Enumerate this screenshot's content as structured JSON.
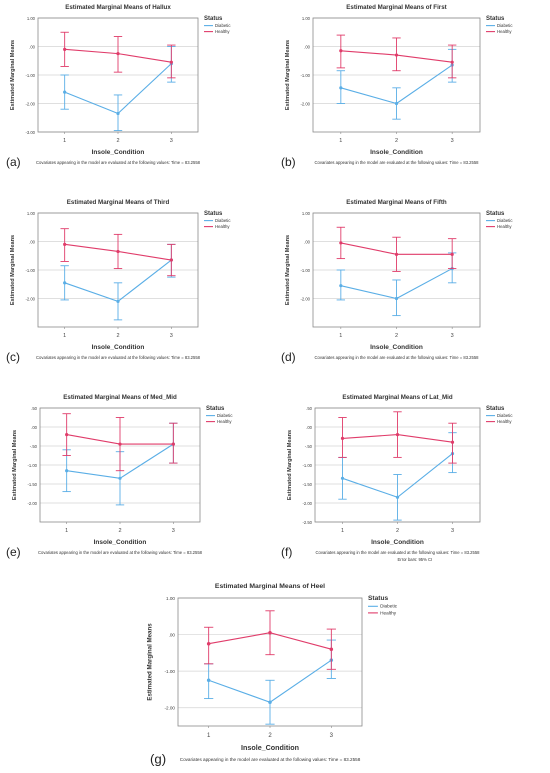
{
  "colors": {
    "diabetic": "#5aaee6",
    "healthy": "#e03c6a",
    "grid": "#d4d4d4",
    "frame": "#8a8a8a"
  },
  "common": {
    "xlabel": "Insole_Condition",
    "ylabel": "Estimated Marginal Means",
    "covariate_note": "Covariates appearing in the model are evaluated at the following values: Time = 83.2558",
    "legend_title": "Status",
    "series_names": [
      "Diabetic",
      "Healthy"
    ],
    "error_note": "Error bars: 95% CI"
  },
  "chart_data": [
    {
      "type": "line",
      "panel_label": "(a)",
      "title": "Estimated Marginal Means of Hallux",
      "x": [
        1,
        2,
        3
      ],
      "ylim": [
        -3.0,
        1.0
      ],
      "yticks": [
        "1.00",
        ".00",
        "-1.00",
        "-2.00",
        "-3.00"
      ],
      "series": [
        {
          "name": "Diabetic",
          "values": [
            -1.6,
            -2.35,
            -0.6
          ],
          "ci_low": [
            -2.2,
            -2.95,
            -1.25
          ],
          "ci_high": [
            -1.0,
            -1.7,
            0.0
          ]
        },
        {
          "name": "Healthy",
          "values": [
            -0.1,
            -0.25,
            -0.55
          ],
          "ci_low": [
            -0.7,
            -0.9,
            -1.1
          ],
          "ci_high": [
            0.5,
            0.35,
            0.05
          ]
        }
      ]
    },
    {
      "type": "line",
      "panel_label": "(b)",
      "title": "Estimated Marginal Means of First",
      "x": [
        1,
        2,
        3
      ],
      "ylim": [
        -3.0,
        1.0
      ],
      "yticks": [
        "1.00",
        ".00",
        "-1.00",
        "-2.00"
      ],
      "series": [
        {
          "name": "Diabetic",
          "values": [
            -1.45,
            -2.0,
            -0.65
          ],
          "ci_low": [
            -2.0,
            -2.55,
            -1.25
          ],
          "ci_high": [
            -0.85,
            -1.45,
            -0.1
          ]
        },
        {
          "name": "Healthy",
          "values": [
            -0.15,
            -0.3,
            -0.55
          ],
          "ci_low": [
            -0.75,
            -0.85,
            -1.1
          ],
          "ci_high": [
            0.4,
            0.3,
            0.05
          ]
        }
      ]
    },
    {
      "type": "line",
      "panel_label": "(c)",
      "title": "Estimated Marginal Means of Third",
      "x": [
        1,
        2,
        3
      ],
      "ylim": [
        -3.0,
        1.0
      ],
      "yticks": [
        "1.00",
        ".00",
        "-1.00",
        "-2.00"
      ],
      "series": [
        {
          "name": "Diabetic",
          "values": [
            -1.45,
            -2.1,
            -0.65
          ],
          "ci_low": [
            -2.05,
            -2.75,
            -1.25
          ],
          "ci_high": [
            -0.85,
            -1.45,
            -0.1
          ]
        },
        {
          "name": "Healthy",
          "values": [
            -0.1,
            -0.35,
            -0.65
          ],
          "ci_low": [
            -0.7,
            -0.95,
            -1.2
          ],
          "ci_high": [
            0.45,
            0.25,
            -0.1
          ]
        }
      ]
    },
    {
      "type": "line",
      "panel_label": "(d)",
      "title": "Estimated Marginal Means of Fifth",
      "x": [
        1,
        2,
        3
      ],
      "ylim": [
        -3.0,
        1.0
      ],
      "yticks": [
        "1.00",
        ".00",
        "-1.00",
        "-2.00"
      ],
      "series": [
        {
          "name": "Diabetic",
          "values": [
            -1.55,
            -2.0,
            -0.95
          ],
          "ci_low": [
            -2.05,
            -2.6,
            -1.45
          ],
          "ci_high": [
            -1.0,
            -1.35,
            -0.4
          ]
        },
        {
          "name": "Healthy",
          "values": [
            -0.05,
            -0.45,
            -0.45
          ],
          "ci_low": [
            -0.6,
            -1.05,
            -0.95
          ],
          "ci_high": [
            0.5,
            0.15,
            0.1
          ]
        }
      ]
    },
    {
      "type": "line",
      "panel_label": "(e)",
      "title": "Estimated Marginal Means of Med_Mid",
      "x": [
        1,
        2,
        3
      ],
      "ylim": [
        -2.5,
        0.5
      ],
      "yticks": [
        ".50",
        ".00",
        "-.50",
        "-1.00",
        "-1.50",
        "-2.00"
      ],
      "series": [
        {
          "name": "Diabetic",
          "values": [
            -1.15,
            -1.35,
            -0.45
          ],
          "ci_low": [
            -1.7,
            -2.05,
            -0.95
          ],
          "ci_high": [
            -0.6,
            -0.65,
            0.1
          ]
        },
        {
          "name": "Healthy",
          "values": [
            -0.2,
            -0.45,
            -0.45
          ],
          "ci_low": [
            -0.75,
            -1.15,
            -0.95
          ],
          "ci_high": [
            0.35,
            0.25,
            0.1
          ]
        }
      ]
    },
    {
      "type": "line",
      "panel_label": "(f)",
      "title": "Estimated Marginal Means of Lat_Mid",
      "x": [
        1,
        2,
        3
      ],
      "ylim": [
        -2.5,
        0.5
      ],
      "yticks": [
        ".50",
        ".00",
        "-.50",
        "-1.00",
        "-1.50",
        "-2.00",
        "-2.50"
      ],
      "error_note": true,
      "series": [
        {
          "name": "Diabetic",
          "values": [
            -1.35,
            -1.85,
            -0.7
          ],
          "ci_low": [
            -1.9,
            -2.45,
            -1.2
          ],
          "ci_high": [
            -0.8,
            -1.25,
            -0.15
          ]
        },
        {
          "name": "Healthy",
          "values": [
            -0.3,
            -0.2,
            -0.4
          ],
          "ci_low": [
            -0.8,
            -0.8,
            -0.95
          ],
          "ci_high": [
            0.25,
            0.4,
            0.1
          ]
        }
      ]
    },
    {
      "type": "line",
      "panel_label": "(g)",
      "title": "Estimated Marginal Means of Heel",
      "x": [
        1,
        2,
        3
      ],
      "ylim": [
        -2.5,
        1.0
      ],
      "yticks": [
        "1.00",
        ".00",
        "-1.00",
        "-2.00"
      ],
      "series": [
        {
          "name": "Diabetic",
          "values": [
            -1.25,
            -1.85,
            -0.7
          ],
          "ci_low": [
            -1.75,
            -2.45,
            -1.2
          ],
          "ci_high": [
            -0.8,
            -1.25,
            -0.15
          ]
        },
        {
          "name": "Healthy",
          "values": [
            -0.25,
            0.05,
            -0.4
          ],
          "ci_low": [
            -0.8,
            -0.55,
            -0.95
          ],
          "ci_high": [
            0.2,
            0.65,
            0.15
          ]
        }
      ]
    }
  ]
}
